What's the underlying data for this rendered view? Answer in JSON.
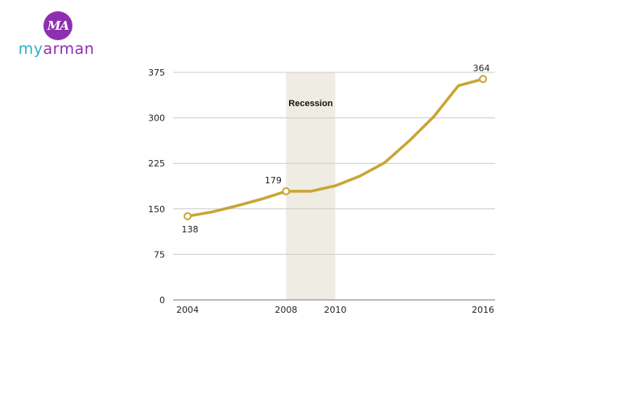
{
  "logo": {
    "badge": "MA",
    "word_part1": "my",
    "word_part2": "arman",
    "colors": {
      "purple": "#8e2fb0",
      "teal": "#2bb3c9"
    }
  },
  "chart_data": {
    "type": "line",
    "title": "",
    "xlabel": "",
    "ylabel": "",
    "x": [
      2004,
      2005,
      2006,
      2007,
      2008,
      2009,
      2010,
      2011,
      2012,
      2013,
      2014,
      2015,
      2016
    ],
    "series": [
      {
        "values": [
          138,
          145,
          155,
          166,
          179,
          179,
          188,
          204,
          226,
          262,
          302,
          353,
          364
        ]
      }
    ],
    "ylim": [
      0,
      375
    ],
    "yticks": [
      0,
      75,
      150,
      225,
      300,
      375
    ],
    "xticks": [
      2004,
      2008,
      2010,
      2016
    ],
    "xlim": [
      2004,
      2016
    ],
    "grid": true,
    "line_color": "#c9a534",
    "labeled_points": [
      {
        "x": 2004,
        "y": 138,
        "label": "138",
        "position": "below"
      },
      {
        "x": 2008,
        "y": 179,
        "label": "179",
        "position": "above-left"
      },
      {
        "x": 2016,
        "y": 364,
        "label": "364",
        "position": "above"
      }
    ],
    "shaded_band": {
      "from": 2008,
      "to": 2010,
      "label": "Recession",
      "color": "#efece4"
    }
  }
}
